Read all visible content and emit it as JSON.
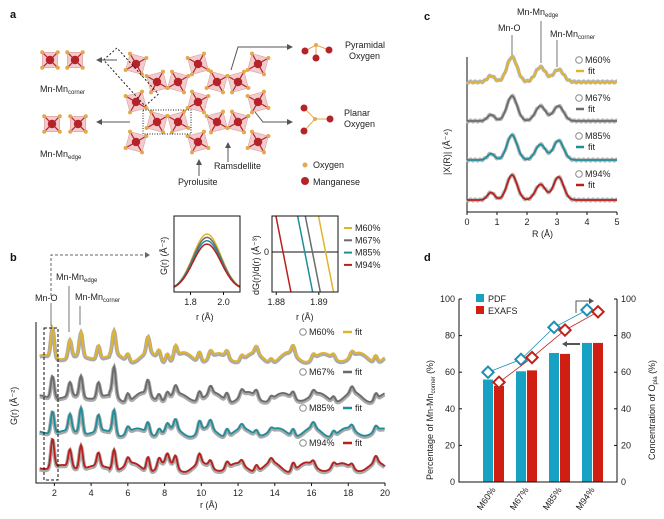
{
  "panel_labels": {
    "a": "a",
    "b": "b",
    "c": "c",
    "d": "d"
  },
  "structure": {
    "corner_label": {
      "main": "Mn-Mn",
      "sub": "corner"
    },
    "edge_label": {
      "main": "Mn-Mn",
      "sub": "edge"
    },
    "pyramidal": [
      "Pyramidal",
      "Oxygen"
    ],
    "planar": [
      "Planar",
      "Oxygen"
    ],
    "ramsdellite": "Ramsdellite",
    "pyrolusite": "Pyrolusite",
    "legend_oxygen": "Oxygen",
    "legend_manganese": "Manganese",
    "colors": {
      "oxygen": "#e3a94b",
      "manganese": "#b5222a",
      "octahedron": "#e8a3a3"
    }
  },
  "chart_data": [
    {
      "id": "b-main",
      "type": "line",
      "xlabel": "r (Å)",
      "ylabel": "G(r) (Å⁻²)",
      "xlim": [
        1,
        20
      ],
      "xticks": [
        2,
        4,
        6,
        8,
        10,
        12,
        14,
        16,
        18,
        20
      ],
      "annotations": {
        "mno": "Mn-O",
        "edge": {
          "main": "Mn-Mn",
          "sub": "edge"
        },
        "corner": {
          "main": "Mn-Mn",
          "sub": "corner"
        }
      },
      "fit_label": "fit",
      "peaks_r_amp": [
        [
          1.9,
          1.0
        ],
        [
          2.85,
          0.65
        ],
        [
          3.45,
          0.95
        ],
        [
          4.4,
          0.6
        ],
        [
          5.25,
          1.0
        ],
        [
          6.0,
          0.3
        ],
        [
          7.1,
          0.55
        ],
        [
          7.7,
          0.3
        ],
        [
          8.15,
          0.3
        ],
        [
          8.6,
          0.4
        ],
        [
          9.9,
          0.4
        ],
        [
          10.5,
          0.3
        ],
        [
          11.4,
          0.3
        ],
        [
          12.2,
          0.2
        ],
        [
          13.0,
          0.25
        ],
        [
          13.8,
          0.15
        ],
        [
          15.0,
          0.3
        ],
        [
          16.1,
          0.2
        ],
        [
          17.2,
          0.2
        ],
        [
          18.2,
          0.2
        ],
        [
          19.5,
          0.25
        ]
      ],
      "series": [
        {
          "name": "M60%",
          "color": "#e2b42a",
          "scale": 1.0
        },
        {
          "name": "M67%",
          "color": "#6b6b6b",
          "scale": 0.95
        },
        {
          "name": "M85%",
          "color": "#1f8e9b",
          "scale": 0.9
        },
        {
          "name": "M94%",
          "color": "#b8201c",
          "scale": 0.95
        }
      ]
    },
    {
      "id": "b-inset-G",
      "type": "line",
      "xlabel": "r (Å)",
      "ylabel": "G(r) (Å⁻²)",
      "xlim": [
        1.7,
        2.1
      ],
      "xticks": [
        1.8,
        2.0
      ],
      "peak_center": 1.9,
      "series": [
        {
          "name": "M60%",
          "color": "#e2b42a",
          "peak": 1.0
        },
        {
          "name": "M67%",
          "color": "#6b6b6b",
          "peak": 0.94
        },
        {
          "name": "M85%",
          "color": "#1f8e9b",
          "peak": 0.88
        },
        {
          "name": "M94%",
          "color": "#b8201c",
          "peak": 0.82
        }
      ]
    },
    {
      "id": "b-inset-dG",
      "type": "line",
      "xlabel": "r (Å)",
      "ylabel": "dG(r)/d(r) (Å⁻³)",
      "xlim": [
        1.879,
        1.8945
      ],
      "xticks": [
        1.88,
        1.89
      ],
      "yticks": [
        0
      ],
      "zero_crossings": [
        {
          "name": "M60%",
          "color": "#e2b42a",
          "r": 1.8918
        },
        {
          "name": "M67%",
          "color": "#6b6b6b",
          "r": 1.8887
        },
        {
          "name": "M85%",
          "color": "#1f8e9b",
          "r": 1.8869
        },
        {
          "name": "M94%",
          "color": "#b8201c",
          "r": 1.8818
        }
      ]
    },
    {
      "id": "c",
      "type": "line",
      "xlabel": "R (Å)",
      "ylabel": "|X(R)| (Å⁻⁴)",
      "xlim": [
        0,
        5
      ],
      "xticks": [
        0,
        1,
        2,
        3,
        4,
        5
      ],
      "annotations": {
        "mno": "Mn-O",
        "edge": {
          "main": "Mn-Mn",
          "sub": "edge"
        },
        "corner": {
          "main": "Mn-Mn",
          "sub": "corner"
        }
      },
      "fit_label": "fit",
      "series": [
        {
          "name": "M60%",
          "color": "#e2b42a",
          "peaks": [
            [
              0.8,
              0.25
            ],
            [
              1.5,
              1.0
            ],
            [
              2.45,
              0.6
            ],
            [
              3.05,
              0.5
            ]
          ]
        },
        {
          "name": "M67%",
          "color": "#6b6b6b",
          "peaks": [
            [
              0.8,
              0.25
            ],
            [
              1.5,
              1.0
            ],
            [
              2.45,
              0.6
            ],
            [
              3.05,
              0.6
            ]
          ]
        },
        {
          "name": "M85%",
          "color": "#1f8e9b",
          "peaks": [
            [
              0.8,
              0.25
            ],
            [
              1.5,
              1.0
            ],
            [
              2.45,
              0.62
            ],
            [
              3.05,
              0.78
            ]
          ]
        },
        {
          "name": "M94%",
          "color": "#b8201c",
          "peaks": [
            [
              0.8,
              0.3
            ],
            [
              1.5,
              1.0
            ],
            [
              2.45,
              0.62
            ],
            [
              3.05,
              0.92
            ]
          ]
        }
      ]
    },
    {
      "id": "d",
      "type": "bar",
      "categories": [
        "M60%",
        "M67%",
        "M85%",
        "M94%"
      ],
      "ylabel_left": {
        "main": "Percentage of Mn-Mn",
        "sub": "corner",
        "tail": " (%)"
      },
      "ylabel_right": {
        "main": "Concentration of O",
        "sub": "pla",
        "tail": " (%)"
      },
      "ylim": [
        0,
        100
      ],
      "yticks": [
        0,
        20,
        40,
        60,
        80,
        100
      ],
      "series": [
        {
          "name": "PDF",
          "color": "#17a2c3",
          "marker_color": "#1d8fb3",
          "values": [
            56,
            60.5,
            70.5,
            76
          ],
          "right_axis": [
            60,
            67,
            84.5,
            94
          ]
        },
        {
          "name": "EXAFS",
          "color": "#d01f12",
          "marker_color": "#c0221a",
          "values": [
            52.5,
            61,
            70,
            76
          ],
          "right_axis": [
            54.5,
            68,
            83,
            93
          ]
        }
      ],
      "legend": "top-left"
    }
  ]
}
